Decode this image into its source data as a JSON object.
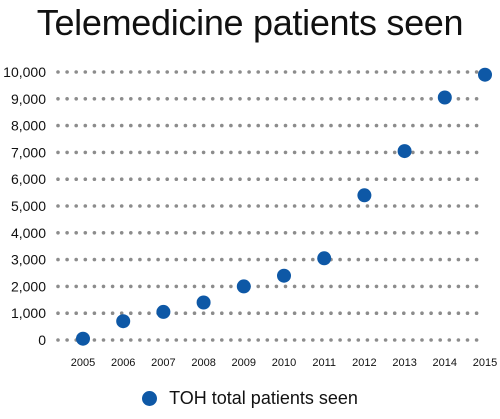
{
  "chart_data": {
    "type": "scatter",
    "title": "Telemedicine patients seen",
    "xlabel": "",
    "ylabel": "",
    "x": [
      "2005",
      "2006",
      "2007",
      "2008",
      "2009",
      "2010",
      "2011",
      "2012",
      "2013",
      "2014",
      "2015"
    ],
    "series": [
      {
        "name": "TOH total patients seen",
        "values": [
          50,
          700,
          1050,
          1400,
          2000,
          2400,
          3050,
          5400,
          7050,
          9050,
          9900
        ]
      }
    ],
    "ylim": [
      0,
      10000
    ],
    "yticks": [
      "0",
      "1,000",
      "2,000",
      "3,000",
      "4,000",
      "5,000",
      "6,000",
      "7,000",
      "8,000",
      "9,000",
      "10,000"
    ],
    "grid": "dotted horizontal",
    "legend": "bottom",
    "colors": {
      "marker": "#0e58a6",
      "grid": "#8c8c8c"
    }
  }
}
